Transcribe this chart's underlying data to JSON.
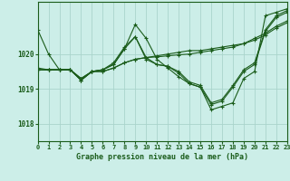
{
  "bg_color": "#cceee8",
  "grid_color": "#aad4cc",
  "line_color": "#1a5c1a",
  "title": "Graphe pression niveau de la mer (hPa)",
  "xlim": [
    0,
    23
  ],
  "ylim": [
    1017.5,
    1021.5
  ],
  "yticks": [
    1018,
    1019,
    1020
  ],
  "xticks": [
    0,
    1,
    2,
    3,
    4,
    5,
    6,
    7,
    8,
    9,
    10,
    11,
    12,
    13,
    14,
    15,
    16,
    17,
    18,
    19,
    20,
    21,
    22,
    23
  ],
  "series": [
    [
      1020.7,
      1020.0,
      1019.55,
      1019.55,
      1019.25,
      1019.5,
      1019.55,
      1019.7,
      1020.15,
      1020.85,
      1020.45,
      1019.85,
      1019.6,
      1019.35,
      1019.15,
      1019.05,
      1018.4,
      1018.5,
      1018.6,
      1019.3,
      1019.5,
      1021.1,
      1021.2,
      1021.3
    ],
    [
      1019.55,
      1019.55,
      1019.55,
      1019.55,
      1019.25,
      1019.5,
      1019.55,
      1019.7,
      1020.15,
      1020.5,
      1019.9,
      1019.7,
      1019.65,
      1019.45,
      1019.15,
      1019.05,
      1018.55,
      1018.65,
      1019.05,
      1019.5,
      1019.7,
      1020.65,
      1021.05,
      1021.2
    ],
    [
      1019.55,
      1019.55,
      1019.55,
      1019.55,
      1019.25,
      1019.5,
      1019.55,
      1019.75,
      1020.2,
      1020.5,
      1019.85,
      1019.7,
      1019.65,
      1019.5,
      1019.2,
      1019.1,
      1018.6,
      1018.7,
      1019.1,
      1019.55,
      1019.75,
      1020.7,
      1021.1,
      1021.25
    ]
  ],
  "series_flat": [
    [
      1019.6,
      1019.55,
      1019.55,
      1019.55,
      1019.3,
      1019.5,
      1019.5,
      1019.6,
      1019.75,
      1019.85,
      1019.9,
      1019.95,
      1020.0,
      1020.05,
      1020.1,
      1020.1,
      1020.15,
      1020.2,
      1020.25,
      1020.3,
      1020.4,
      1020.55,
      1020.75,
      1020.9
    ],
    [
      1019.55,
      1019.55,
      1019.55,
      1019.55,
      1019.3,
      1019.5,
      1019.5,
      1019.6,
      1019.75,
      1019.85,
      1019.9,
      1019.92,
      1019.95,
      1019.98,
      1020.0,
      1020.05,
      1020.1,
      1020.15,
      1020.2,
      1020.3,
      1020.45,
      1020.6,
      1020.8,
      1020.95
    ]
  ]
}
